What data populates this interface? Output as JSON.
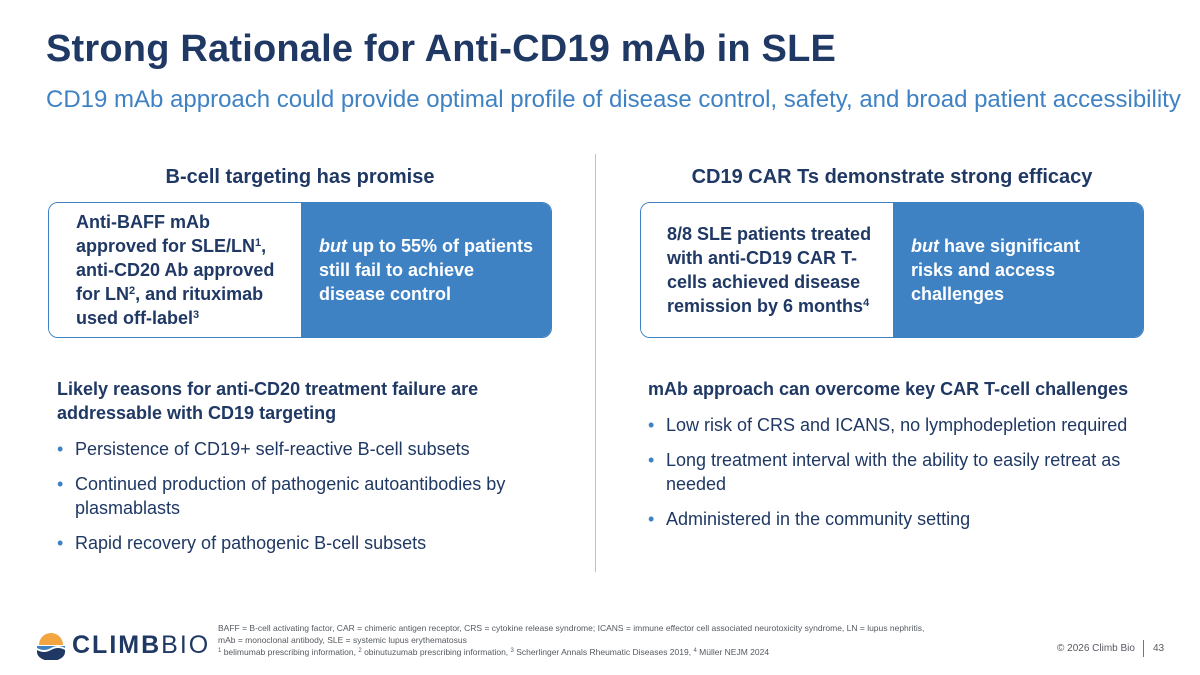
{
  "title": "Strong Rationale for Anti-CD19 mAb in SLE",
  "subtitle": "CD19 mAb approach could provide optimal profile of disease control, safety, and broad patient accessibility",
  "left": {
    "heading": "B-cell targeting has promise",
    "card_left": {
      "t1": "Anti-BAFF mAb approved for SLE/LN",
      "s1": "1",
      "t2": ", anti-CD20 Ab approved for LN",
      "s2": "2",
      "t3": ", and rituximab used off-label",
      "s3": "3"
    },
    "card_right": {
      "em": "but",
      "text": " up to 55% of patients still fail to achieve disease control"
    },
    "section_heading": "Likely reasons for anti-CD20 treatment failure are addressable with CD19 targeting",
    "bullets": [
      "Persistence of CD19+ self-reactive B-cell subsets",
      "Continued production of pathogenic autoantibodies by plasmablasts",
      "Rapid recovery of pathogenic B-cell subsets"
    ]
  },
  "right": {
    "heading": "CD19 CAR Ts demonstrate strong efficacy",
    "card_left": {
      "t1": "8/8 SLE patients treated with anti-CD19 CAR T-cells achieved disease remission by 6 months",
      "s1": "4"
    },
    "card_right": {
      "em": "but",
      "text": " have significant risks and access challenges"
    },
    "section_heading": "mAb approach can overcome key CAR T-cell challenges",
    "bullets": [
      "Low risk of CRS and ICANS, no lymphodepletion required",
      "Long treatment interval with the ability to easily retreat as needed",
      "Administered in the community setting"
    ]
  },
  "footnotes": {
    "line1": "BAFF = B-cell activating factor, CAR = chimeric antigen receptor, CRS = cytokine release syndrome; ICANS = immune effector cell associated neurotoxicity syndrome, LN = lupus nephritis,",
    "line2": "mAb = monoclonal antibody, SLE = systemic lupus erythematosus",
    "n1": "1",
    "r1": " belimumab prescribing information, ",
    "n2": "2",
    "r2": " obinutuzumab prescribing information, ",
    "n3": "3",
    "r3": " Scherlinger Annals Rheumatic Diseases 2019, ",
    "n4": "4",
    "r4": " Müller NEJM 2024"
  },
  "logo": {
    "bold": "CLIMB",
    "light": "BIO"
  },
  "copyright": "© 2026 Climb Bio",
  "page_number": "43",
  "colors": {
    "navy": "#1f3864",
    "accent_blue": "#3f82c4",
    "logo_orange": "#f2a541"
  },
  "icons": {
    "logo_mark": "mountain-sun-icon",
    "bullet": "bullet-dot-icon"
  }
}
